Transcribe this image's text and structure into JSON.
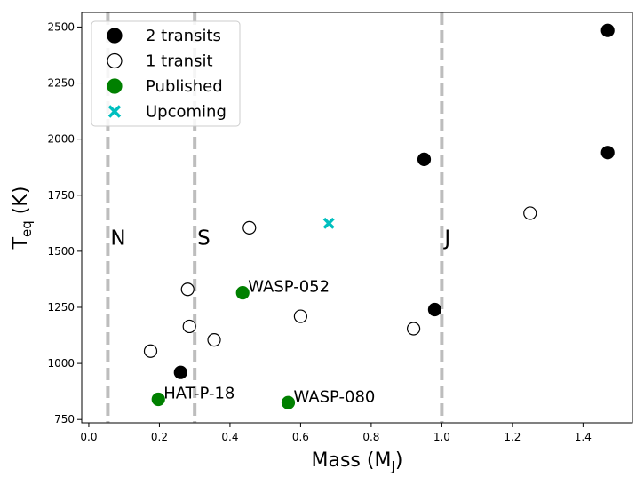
{
  "chart_data": {
    "type": "scatter",
    "title": "",
    "xlabel": "Mass (M",
    "xlabel_sub": "J",
    "xlabel_close": ")",
    "ylabel": "T",
    "ylabel_sub": "eq",
    "ylabel_rest": " (K)",
    "xlim": [
      -0.02,
      1.54
    ],
    "ylim": [
      735,
      2565
    ],
    "xticks": [
      0.0,
      0.2,
      0.4,
      0.6,
      0.8,
      1.0,
      1.2,
      1.4
    ],
    "xtick_labels": [
      "0.0",
      "0.2",
      "0.4",
      "0.6",
      "0.8",
      "1.0",
      "1.2",
      "1.4"
    ],
    "yticks": [
      750,
      1000,
      1250,
      1500,
      1750,
      2000,
      2250,
      2500
    ],
    "ytick_labels": [
      "750",
      "1000",
      "1250",
      "1500",
      "1750",
      "2000",
      "2250",
      "2500"
    ],
    "grid": false,
    "legend_position": "top-left",
    "reference_lines": [
      {
        "x": 0.054,
        "label": "N"
      },
      {
        "x": 0.3,
        "label": "S"
      },
      {
        "x": 1.0,
        "label": "J"
      }
    ],
    "series": [
      {
        "name": "2 transits",
        "marker": "filled-circle",
        "color": "#000000",
        "points": [
          [
            0.26,
            960
          ],
          [
            0.95,
            1910
          ],
          [
            0.98,
            1240
          ],
          [
            1.47,
            1940
          ],
          [
            1.47,
            2485
          ]
        ]
      },
      {
        "name": "1 transit",
        "marker": "open-circle",
        "color": "#000000",
        "points": [
          [
            0.175,
            1055
          ],
          [
            0.28,
            1330
          ],
          [
            0.285,
            1165
          ],
          [
            0.355,
            1105
          ],
          [
            0.455,
            1605
          ],
          [
            0.6,
            1210
          ],
          [
            0.92,
            1155
          ],
          [
            1.25,
            1670
          ]
        ]
      },
      {
        "name": "Published",
        "marker": "filled-circle",
        "color": "#008000",
        "points": [
          [
            0.197,
            840,
            "HAT-P-18"
          ],
          [
            0.436,
            1315,
            "WASP-052"
          ],
          [
            0.565,
            825,
            "WASP-080"
          ]
        ]
      },
      {
        "name": "Upcoming",
        "marker": "x",
        "color": "#00bfbf",
        "points": [
          [
            0.68,
            1625
          ]
        ]
      }
    ]
  }
}
